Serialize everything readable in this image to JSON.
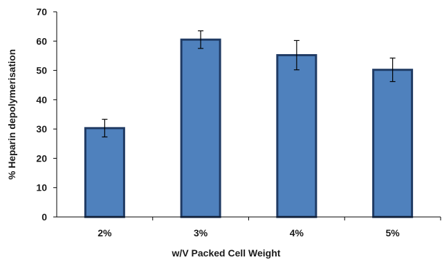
{
  "chart_data": {
    "type": "bar",
    "title": "",
    "xlabel": "w/V Packed Cell Weight",
    "ylabel": "% Heparin  depolymerisation",
    "categories": [
      "2%",
      "3%",
      "4%",
      "5%"
    ],
    "values": [
      30.3,
      60.5,
      55.2,
      50.2
    ],
    "error": [
      3.0,
      3.0,
      5.0,
      4.0
    ],
    "ylim": [
      0,
      70
    ],
    "yticks": [
      0,
      10,
      20,
      30,
      40,
      50,
      60,
      70
    ],
    "grid": false,
    "legend": "none",
    "colors": {
      "bar_fill": "#4f81bd",
      "bar_stroke": "#1f3a63",
      "axis": "#000000",
      "error": "#000000"
    }
  }
}
